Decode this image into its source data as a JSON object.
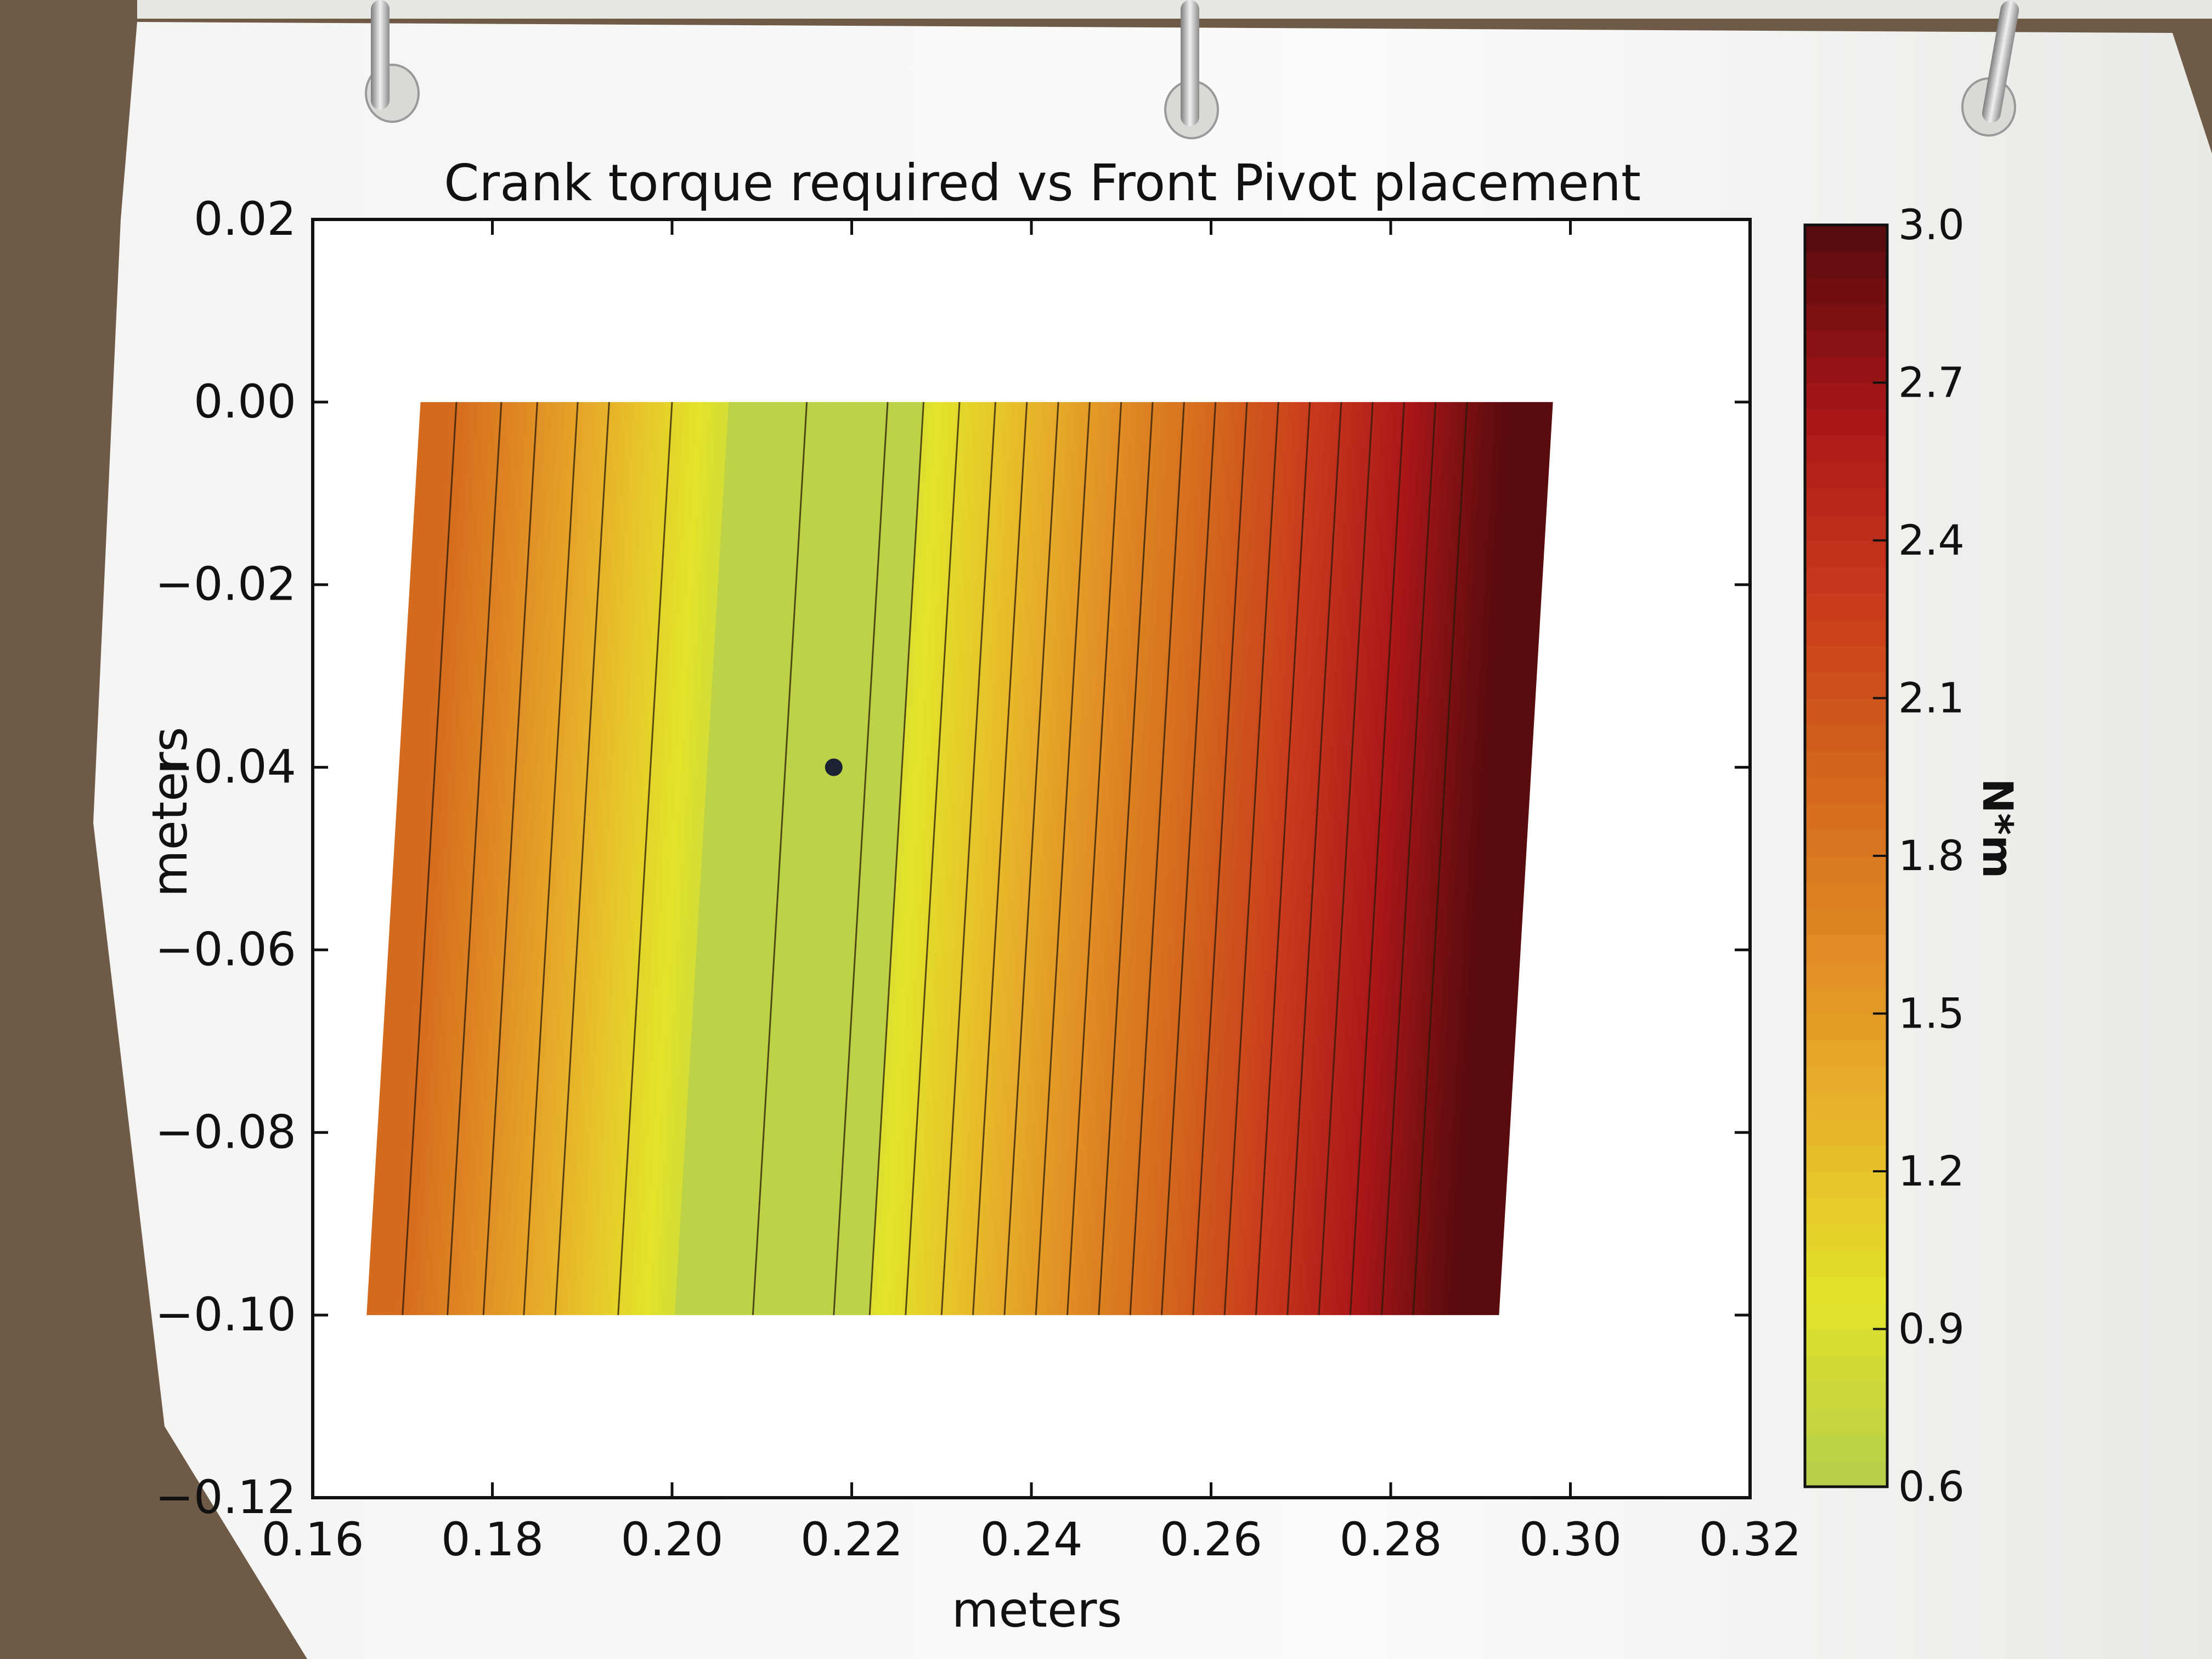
{
  "chart_data": {
    "type": "heatmap",
    "title": "Crank torque required vs Front Pivot placement",
    "xlabel": "meters",
    "ylabel": "meters",
    "xlim": [
      0.16,
      0.32
    ],
    "ylim": [
      -0.12,
      0.02
    ],
    "x_ticks": [
      "0.16",
      "0.18",
      "0.20",
      "0.22",
      "0.24",
      "0.26",
      "0.28",
      "0.30",
      "0.32"
    ],
    "y_ticks": [
      "0.02",
      "0.00",
      "−0.02",
      "−0.04",
      "−0.06",
      "−0.08",
      "−0.10",
      "−0.12"
    ],
    "data_extent": {
      "x": [
        0.172,
        0.298
      ],
      "y": [
        -0.1,
        0.0
      ]
    },
    "colorbar": {
      "label": "N*m",
      "ticks": [
        "0.6",
        "0.9",
        "1.2",
        "1.5",
        "1.8",
        "2.1",
        "2.4",
        "2.7",
        "3.0"
      ],
      "range": [
        0.6,
        3.0
      ],
      "colormap": "autumn-yellow-green",
      "stops": [
        "#b7cf4a",
        "#e3e32a",
        "#e8b52a",
        "#e08a24",
        "#d2641c",
        "#c8381c",
        "#a81618",
        "#5a0b0e"
      ]
    },
    "minimum_band_x": [
      0.206,
      0.228
    ],
    "marker": {
      "x": 0.218,
      "y": -0.04,
      "color": "#1a2233"
    },
    "contour_x_at_top": [
      0.176,
      0.181,
      0.185,
      0.1895,
      0.193,
      0.2,
      0.215,
      0.224,
      0.228,
      0.232,
      0.236,
      0.2395,
      0.243,
      0.2465,
      0.25,
      0.2535,
      0.257,
      0.2605,
      0.264,
      0.2675,
      0.271,
      0.2745,
      0.278,
      0.2815,
      0.285,
      0.2885
    ],
    "contour_slant_per_0.1m": 0.006
  }
}
